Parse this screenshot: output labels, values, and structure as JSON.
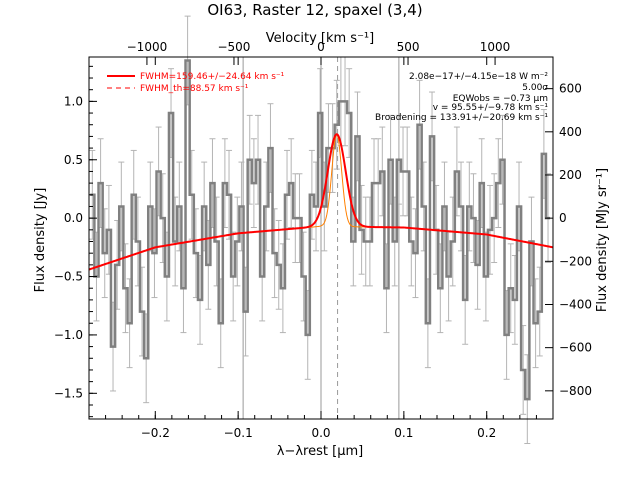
{
  "colors": {
    "data_line": "#808080",
    "error_bar": "#b4b4b4",
    "fit": "#ff0000",
    "thermal": "#ff8000",
    "axes": "#000000",
    "background": "#ffffff"
  },
  "chart_data": {
    "type": "line",
    "title": "OI63, Raster 12, spaxel (3,4)",
    "xlabel": "λ−λrest [μm]",
    "ylabel_left": "Flux density [Jy]",
    "ylabel_right": "Flux density [MJy sr⁻¹]",
    "xlabel_top": "Velocity [km s⁻¹]",
    "xlim": [
      -0.28,
      0.28
    ],
    "ylim": [
      -1.72,
      1.38
    ],
    "xticks": [
      -0.2,
      -0.1,
      0.0,
      0.1,
      0.2
    ],
    "xtick_labels": [
      "−0.2",
      "−0.1",
      "0.0",
      "0.1",
      "0.2"
    ],
    "yticks": [
      -1.5,
      -1.0,
      -0.5,
      0.0,
      0.5,
      1.0
    ],
    "ytick_labels": [
      "−1.5",
      "−1.0",
      "−0.5",
      "0.0",
      "0.5",
      "1.0"
    ],
    "top_ticks_velocity": [
      -1000,
      -500,
      0,
      500,
      1000
    ],
    "top_tick_labels": [
      "−1000",
      "−500",
      "0",
      "500",
      "1000"
    ],
    "right_ticks": [
      -800,
      -600,
      -400,
      -200,
      0,
      200,
      400,
      600
    ],
    "right_tick_labels": [
      "−800",
      "−600",
      "−400",
      "−200",
      "0",
      "200",
      "400",
      "600"
    ],
    "right_scale_per_jy": 541,
    "velocity_per_um": 4760,
    "vertical_lines_x": [
      -0.094,
      0.0,
      0.094
    ],
    "dashed_line_x": 0.02,
    "legend": [
      {
        "label": "FWHM=159.46+/−24.64 km s⁻¹",
        "style": "solid"
      },
      {
        "label": "FWHM_th=88.57 km s⁻¹",
        "style": "dashed"
      }
    ],
    "annotations": [
      "2.08e−17+/−4.15e−18 W m⁻²",
      "5.00σ",
      "EQWobs = −0.73 μm",
      "v = 95.55+/−9.78 km s⁻¹",
      "Broadening = 133.91+/−20.69 km s⁻¹"
    ],
    "series": [
      {
        "kind": "data",
        "x": [
          -0.276,
          -0.271,
          -0.266,
          -0.261,
          -0.256,
          -0.251,
          -0.246,
          -0.241,
          -0.236,
          -0.231,
          -0.226,
          -0.221,
          -0.216,
          -0.211,
          -0.206,
          -0.201,
          -0.196,
          -0.191,
          -0.186,
          -0.181,
          -0.176,
          -0.171,
          -0.166,
          -0.161,
          -0.156,
          -0.151,
          -0.146,
          -0.141,
          -0.136,
          -0.131,
          -0.126,
          -0.121,
          -0.116,
          -0.111,
          -0.106,
          -0.101,
          -0.096,
          -0.091,
          -0.086,
          -0.081,
          -0.076,
          -0.071,
          -0.066,
          -0.061,
          -0.056,
          -0.051,
          -0.046,
          -0.041,
          -0.036,
          -0.031,
          -0.026,
          -0.021,
          -0.016,
          -0.011,
          -0.006,
          -0.001,
          0.004,
          0.009,
          0.014,
          0.019,
          0.024,
          0.029,
          0.034,
          0.039,
          0.044,
          0.049,
          0.054,
          0.059,
          0.064,
          0.069,
          0.074,
          0.079,
          0.084,
          0.089,
          0.094,
          0.099,
          0.104,
          0.109,
          0.114,
          0.119,
          0.124,
          0.129,
          0.134,
          0.139,
          0.144,
          0.149,
          0.154,
          0.159,
          0.164,
          0.169,
          0.174,
          0.179,
          0.184,
          0.189,
          0.194,
          0.199,
          0.204,
          0.209,
          0.214,
          0.219,
          0.224,
          0.229,
          0.234,
          0.239,
          0.244,
          0.249,
          0.254,
          0.259,
          0.264,
          0.269,
          0.274
        ],
        "y": [
          0.2,
          -0.5,
          0.3,
          -0.3,
          -0.1,
          -1.1,
          -0.4,
          0.1,
          -0.6,
          -0.9,
          0.2,
          -0.2,
          -0.8,
          -1.2,
          0.1,
          -0.3,
          0.4,
          0.0,
          -0.5,
          0.9,
          -0.2,
          0.1,
          -0.6,
          1.35,
          0.2,
          -0.3,
          -0.7,
          0.1,
          -0.4,
          0.3,
          -0.2,
          -0.9,
          0.3,
          0.2,
          -0.5,
          -0.2,
          0.1,
          -0.8,
          0.5,
          0.3,
          0.5,
          -0.5,
          0.1,
          0.6,
          -0.3,
          -0.4,
          -0.6,
          0.2,
          0.3,
          0.0,
          0.0,
          -0.5,
          -1.0,
          0.2,
          0.1,
          0.9,
          0.1,
          0.6,
          0.6,
          0.8,
          1.0,
          1.0,
          0.9,
          -0.2,
          0.7,
          -0.1,
          -0.2,
          -0.2,
          0.3,
          0.3,
          0.4,
          -0.6,
          0.5,
          -0.2,
          0.5,
          0.4,
          0.4,
          -0.2,
          -0.3,
          0.8,
          0.1,
          -0.9,
          0.7,
          -0.1,
          -0.6,
          0.1,
          -0.5,
          -0.2,
          0.4,
          0.1,
          -0.7,
          0.1,
          0.0,
          -0.4,
          0.3,
          -0.5,
          -0.1,
          0.0,
          0.3,
          0.5,
          -1.0,
          -0.6,
          -0.7,
          0.1,
          -1.3,
          -1.55,
          -0.2,
          -0.9,
          -0.8,
          0.55,
          0.0
        ],
        "yerr": 0.38
      },
      {
        "kind": "fit",
        "baseline": [
          [
            -0.28,
            -0.44
          ],
          [
            -0.2,
            -0.25
          ],
          [
            -0.1,
            -0.13
          ],
          [
            0.0,
            -0.07
          ],
          [
            0.1,
            -0.08
          ],
          [
            0.2,
            -0.14
          ],
          [
            0.28,
            -0.25
          ]
        ],
        "gaussian_center": 0.019,
        "gaussian_amplitude": 0.79,
        "gaussian_sigma": 0.0107
      },
      {
        "kind": "thermal",
        "gaussian_center": 0.019,
        "gaussian_amplitude": 0.79,
        "gaussian_sigma": 0.0059
      }
    ]
  }
}
